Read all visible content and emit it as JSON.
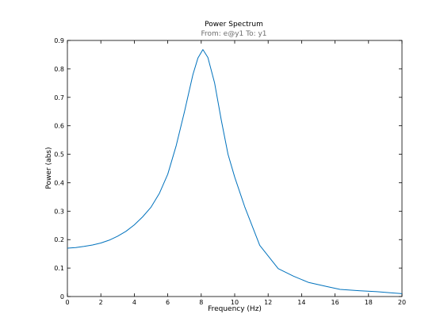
{
  "chart_data": {
    "type": "line",
    "title": "Power Spectrum",
    "subtitle": "From: e@y1  To: y1",
    "xlabel": "Frequency  (Hz)",
    "ylabel": "Power (abs)",
    "xlim": [
      0,
      20
    ],
    "ylim": [
      0,
      0.9
    ],
    "xticks": [
      0,
      2,
      4,
      6,
      8,
      10,
      12,
      14,
      16,
      18,
      20
    ],
    "xtick_labels": [
      "0",
      "2",
      "4",
      "6",
      "8",
      "10",
      "12",
      "14",
      "16",
      "18",
      "20"
    ],
    "yticks": [
      0,
      0.1,
      0.2,
      0.3,
      0.4,
      0.5,
      0.6,
      0.7,
      0.8,
      0.9
    ],
    "ytick_labels": [
      "0",
      "0.1",
      "0.2",
      "0.3",
      "0.4",
      "0.5",
      "0.6",
      "0.7",
      "0.8",
      "0.9"
    ],
    "grid": false,
    "line_color": "#0072bd",
    "series": [
      {
        "x": [
          0,
          0.5,
          1.0,
          1.5,
          2.0,
          2.5,
          3.0,
          3.5,
          4.0,
          4.5,
          5.0,
          5.5,
          6.0,
          6.5,
          7.0,
          7.5,
          7.8,
          8.1,
          8.4,
          8.8,
          9.2,
          9.6,
          10.0,
          10.6,
          11.5,
          12.6,
          13.5,
          14.4,
          15.5,
          16.3,
          17.5,
          18.5,
          19.3,
          20.0
        ],
        "y": [
          0.17,
          0.172,
          0.176,
          0.181,
          0.188,
          0.198,
          0.212,
          0.229,
          0.252,
          0.28,
          0.314,
          0.363,
          0.43,
          0.53,
          0.65,
          0.78,
          0.838,
          0.868,
          0.84,
          0.75,
          0.62,
          0.5,
          0.42,
          0.315,
          0.18,
          0.098,
          0.072,
          0.05,
          0.035,
          0.025,
          0.02,
          0.017,
          0.013,
          0.01
        ]
      }
    ]
  }
}
